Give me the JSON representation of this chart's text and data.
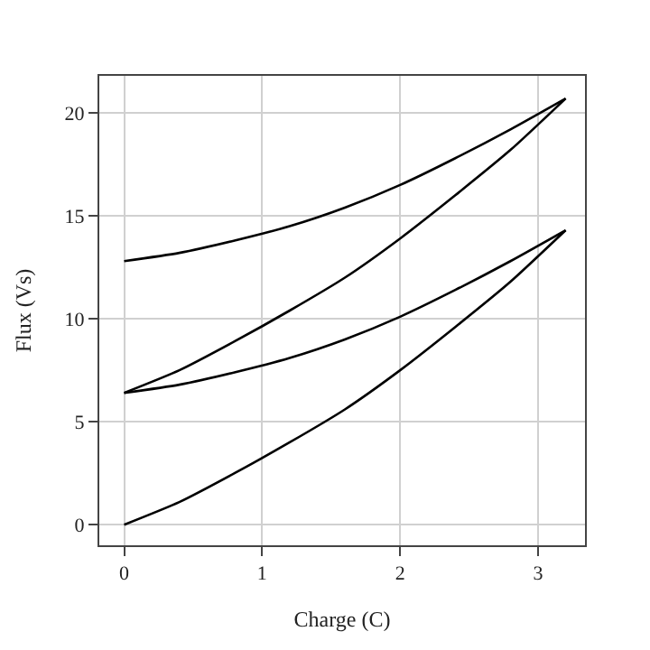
{
  "chart_data": {
    "type": "line",
    "xlabel": "Charge (C)",
    "ylabel": "Flux (Vs)",
    "x": [
      0,
      0.4,
      0.8,
      1.2,
      1.6,
      2.0,
      2.4,
      2.8,
      3.2
    ],
    "series": [
      {
        "color": "#000000",
        "values": [
          12.8,
          13.2,
          13.8,
          14.5,
          15.4,
          16.5,
          17.8,
          19.2,
          20.7
        ]
      },
      {
        "color": "#000000",
        "values": [
          6.4,
          7.5,
          8.9,
          10.4,
          12.0,
          13.9,
          16.0,
          18.2,
          20.7
        ]
      },
      {
        "color": "#000000",
        "values": [
          6.4,
          6.8,
          7.4,
          8.1,
          9.0,
          10.1,
          11.4,
          12.8,
          14.3
        ]
      },
      {
        "color": "#000000",
        "values": [
          0,
          1.1,
          2.5,
          4.0,
          5.6,
          7.5,
          9.6,
          11.8,
          14.3
        ]
      }
    ],
    "xlim": [
      -0.18,
      3.34
    ],
    "ylim": [
      -1.0,
      21.8
    ],
    "xticks": [
      0,
      1,
      2,
      3
    ],
    "yticks": [
      0,
      5,
      10,
      15,
      20
    ],
    "grid": true,
    "marker": "none",
    "line_style": "solid"
  }
}
